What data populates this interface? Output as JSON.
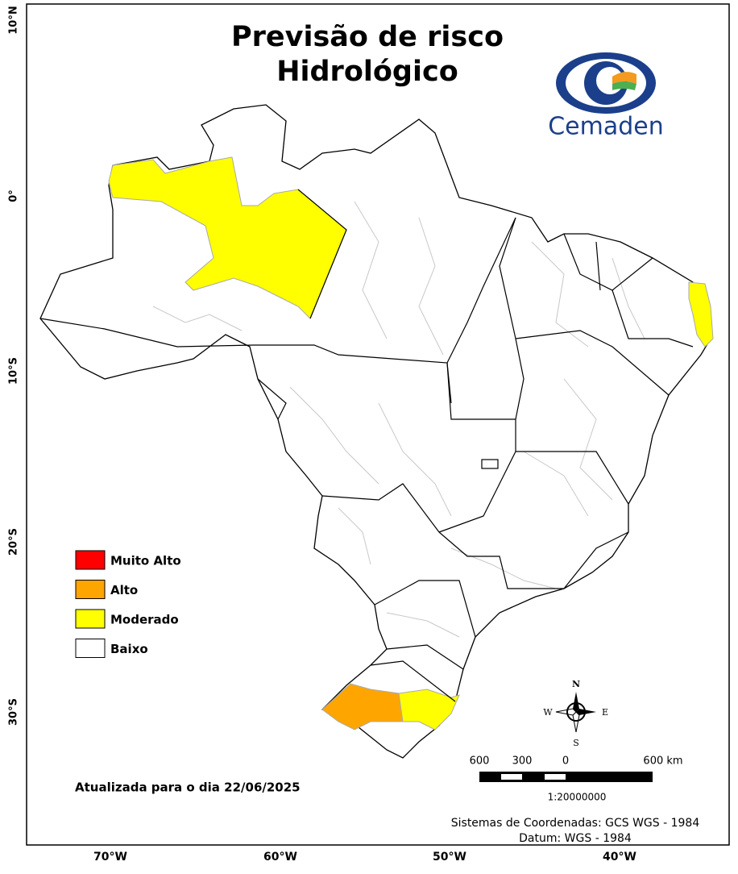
{
  "header": {
    "title": [
      "Previsão de risco",
      "Hidrológico"
    ]
  },
  "logo": {
    "text": "Cemaden"
  },
  "legend": {
    "items": [
      {
        "label": "Muito Alto",
        "color": "#ff0000"
      },
      {
        "label": "Alto",
        "color": "#ffa500"
      },
      {
        "label": "Moderado",
        "color": "#ffff00"
      },
      {
        "label": "Baixo",
        "color": "#ffffff"
      }
    ]
  },
  "axes": {
    "latitude": [
      "10°N",
      "0°",
      "10°S",
      "20°S",
      "30°S"
    ],
    "longitude": [
      "70°W",
      "60°W",
      "50°W",
      "40°W"
    ]
  },
  "note": "Atualizada para o dia 22/06/2025",
  "compass": {
    "north": "N",
    "south": "S",
    "east": "E",
    "west": "W"
  },
  "scale": {
    "labels": [
      "600",
      "300",
      "0",
      "600 km"
    ],
    "ratio": "1:20000000"
  },
  "footer": {
    "lines": [
      "Sistemas de Coordenadas: GCS WGS - 1984",
      "Datum: WGS - 1984"
    ]
  }
}
